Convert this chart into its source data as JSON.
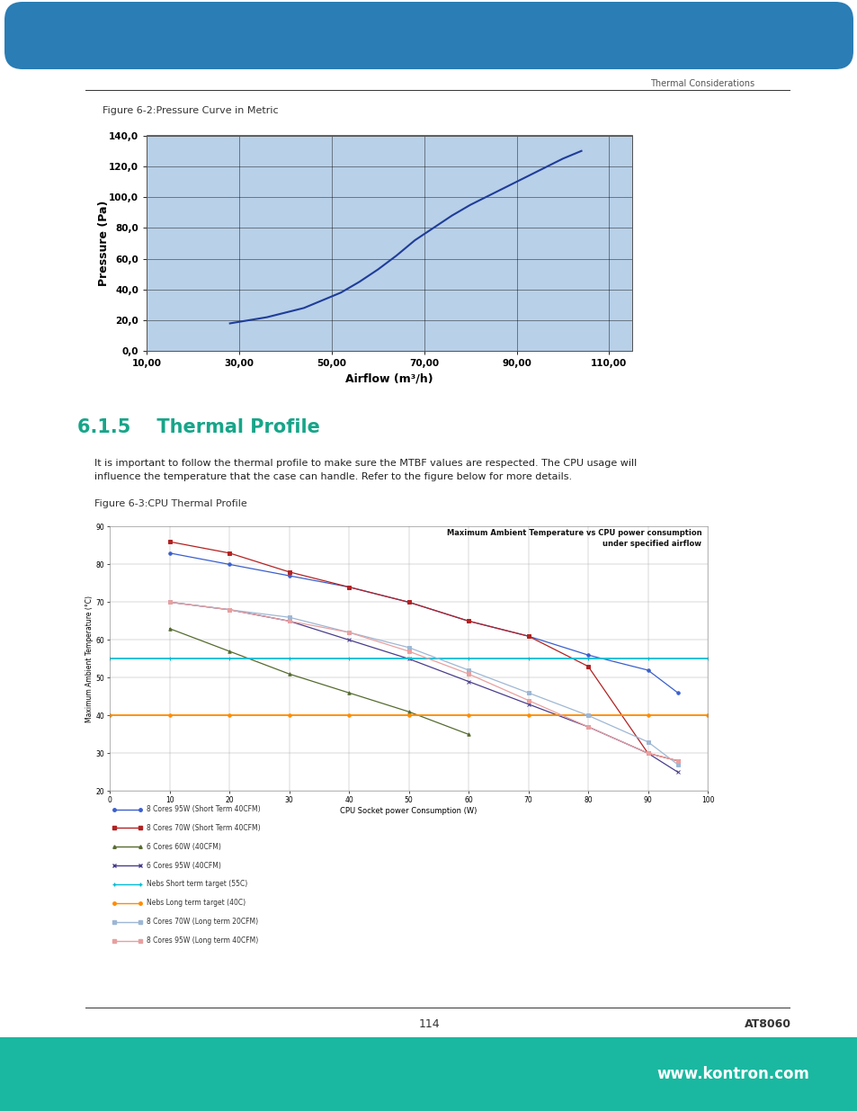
{
  "page_bg": "#ffffff",
  "section_color": "#17a589",
  "fig_caption1": "Figure 6-2:Pressure Curve in Metric",
  "fig_caption2": "Figure 6-3:CPU Thermal Profile",
  "section_title": "6.1.5    Thermal Profile",
  "body_text_line1": "It is important to follow the thermal profile to make sure the MTBF values are respected. The CPU usage will",
  "body_text_line2": "influence the temperature that the case can handle. Refer to the figure below for more details.",
  "header_text": "Thermal Considerations",
  "footer_page": "114",
  "footer_model": "AT8060",
  "footer_website": "www.kontron.com",
  "chart1": {
    "xlabel": "Airflow (m³/h)",
    "ylabel": "Pressure (Pa)",
    "bg_color": "#b8d0e8",
    "line_color": "#1f3d99",
    "xlim": [
      10,
      115
    ],
    "ylim": [
      0,
      140
    ],
    "xticks": [
      10,
      30,
      50,
      70,
      90,
      110
    ],
    "yticks": [
      0,
      20,
      40,
      60,
      80,
      100,
      120,
      140
    ],
    "xtick_labels": [
      "10,00",
      "30,00",
      "50,00",
      "70,00",
      "90,00",
      "110,00"
    ],
    "ytick_labels": [
      "0,0",
      "20,0",
      "40,0",
      "60,0",
      "80,0",
      "100,0",
      "120,0",
      "140,0"
    ],
    "x_data": [
      28,
      32,
      36,
      40,
      44,
      48,
      52,
      56,
      60,
      64,
      68,
      72,
      76,
      80,
      84,
      88,
      92,
      96,
      100,
      104
    ],
    "y_data": [
      18,
      20,
      22,
      25,
      28,
      33,
      38,
      45,
      53,
      62,
      72,
      80,
      88,
      95,
      101,
      107,
      113,
      119,
      125,
      130
    ]
  },
  "chart2": {
    "title_line1": "Maximum Ambient Temperature vs CPU power consumption",
    "title_line2": "under specified airflow",
    "xlabel": "CPU Socket power Consumption (W)",
    "ylabel": "Maximum Ambient Temperature (°C)",
    "xlim": [
      0,
      100
    ],
    "ylim": [
      20,
      90
    ],
    "xticks": [
      0,
      10,
      20,
      30,
      40,
      50,
      60,
      70,
      80,
      90,
      100
    ],
    "yticks": [
      20,
      30,
      40,
      50,
      60,
      70,
      80,
      90
    ],
    "series": [
      {
        "label": "8 Cores 95W (Short Term 40CFM)",
        "color": "#3a5fcd",
        "marker": "o",
        "x": [
          10,
          20,
          30,
          40,
          50,
          60,
          70,
          80,
          90,
          95
        ],
        "y": [
          83,
          80,
          77,
          74,
          70,
          65,
          61,
          56,
          52,
          46
        ],
        "linewidth": 0.9,
        "markersize": 2.5
      },
      {
        "label": "8 Cores 70W (Short Term 40CFM)",
        "color": "#b22222",
        "marker": "s",
        "x": [
          10,
          20,
          30,
          40,
          50,
          60,
          70,
          80,
          90,
          95
        ],
        "y": [
          86,
          83,
          78,
          74,
          70,
          65,
          61,
          53,
          30,
          28
        ],
        "linewidth": 0.9,
        "markersize": 2.5
      },
      {
        "label": "6 Cores 60W (40CFM)",
        "color": "#556b2f",
        "marker": "^",
        "x": [
          10,
          20,
          30,
          40,
          50,
          60
        ],
        "y": [
          63,
          57,
          51,
          46,
          41,
          35
        ],
        "linewidth": 0.9,
        "markersize": 2.5
      },
      {
        "label": "6 Cores 95W (40CFM)",
        "color": "#483d8b",
        "marker": "x",
        "x": [
          10,
          20,
          30,
          40,
          50,
          60,
          70,
          80,
          90,
          95
        ],
        "y": [
          70,
          68,
          65,
          60,
          55,
          49,
          43,
          37,
          30,
          25
        ],
        "linewidth": 0.9,
        "markersize": 2.5
      },
      {
        "label": "Nebs Short term target (55C)",
        "color": "#00bcd4",
        "marker": "+",
        "x": [
          0,
          10,
          20,
          30,
          40,
          50,
          60,
          70,
          80,
          90,
          100
        ],
        "y": [
          55,
          55,
          55,
          55,
          55,
          55,
          55,
          55,
          55,
          55,
          55
        ],
        "linewidth": 1.3,
        "markersize": 3.5
      },
      {
        "label": "Nebs Long term target (40C)",
        "color": "#ff8c00",
        "marker": "o",
        "x": [
          0,
          10,
          20,
          30,
          40,
          50,
          60,
          70,
          80,
          90,
          100
        ],
        "y": [
          40,
          40,
          40,
          40,
          40,
          40,
          40,
          40,
          40,
          40,
          40
        ],
        "linewidth": 1.3,
        "markersize": 2.5
      },
      {
        "label": "8 Cores 70W (Long term 20CFM)",
        "color": "#9eb7d4",
        "marker": "s",
        "x": [
          10,
          20,
          30,
          40,
          50,
          60,
          70,
          80,
          90,
          95
        ],
        "y": [
          70,
          68,
          66,
          62,
          58,
          52,
          46,
          40,
          33,
          27
        ],
        "linewidth": 0.9,
        "markersize": 2.5
      },
      {
        "label": "8 Cores 95W (Long term 40CFM)",
        "color": "#e8a0a0",
        "marker": "s",
        "x": [
          10,
          20,
          30,
          40,
          50,
          60,
          70,
          80,
          90,
          95
        ],
        "y": [
          70,
          68,
          65,
          62,
          57,
          51,
          44,
          37,
          30,
          28
        ],
        "linewidth": 0.9,
        "markersize": 2.5
      }
    ]
  }
}
